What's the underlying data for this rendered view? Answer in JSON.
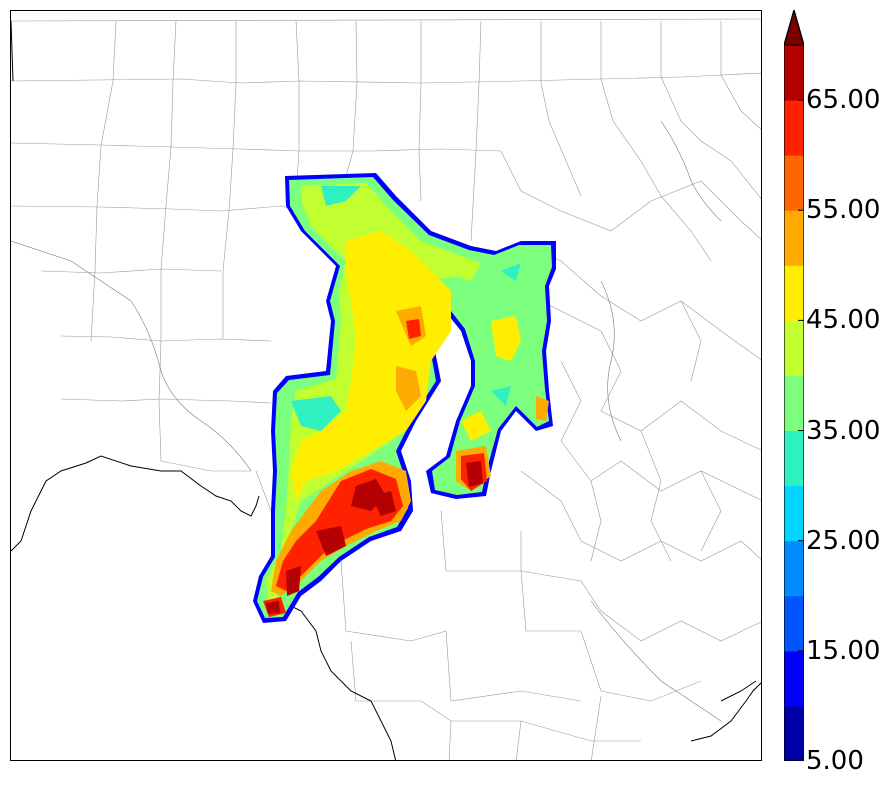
{
  "map": {
    "colorbar": {
      "extend": "max",
      "levels": [
        5,
        10,
        15,
        20,
        25,
        30,
        35,
        40,
        45,
        50,
        55,
        60,
        65,
        70
      ],
      "colors": [
        "#0000a8",
        "#0000ff",
        "#0055ff",
        "#008cff",
        "#00d5ff",
        "#2ef0c0",
        "#7cff7c",
        "#c2ff30",
        "#ffee00",
        "#ffaa00",
        "#ff6600",
        "#ff2200",
        "#b40000",
        "#7a0000"
      ],
      "tick_labels": [
        "5.00",
        "15.00",
        "25.00",
        "35.00",
        "45.00",
        "55.00",
        "65.00"
      ]
    }
  }
}
